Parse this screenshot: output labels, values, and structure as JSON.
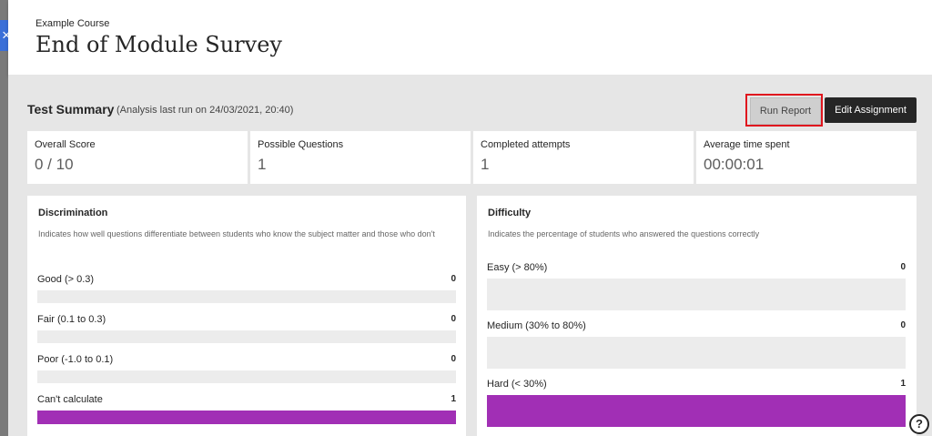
{
  "header": {
    "close_glyph": "×",
    "course_name": "Example Course",
    "page_title": "End of Module Survey"
  },
  "summary": {
    "title": "Test Summary",
    "analysis_note": "(Analysis last run on 24/03/2021, 20:40)",
    "run_report_label": "Run Report",
    "edit_assignment_label": "Edit Assignment"
  },
  "stats": [
    {
      "label": "Overall Score",
      "value": "0 / 10"
    },
    {
      "label": "Possible Questions",
      "value": "1"
    },
    {
      "label": "Completed attempts",
      "value": "1"
    },
    {
      "label": "Average time spent",
      "value": "00:00:01"
    }
  ],
  "discrimination": {
    "title": "Discrimination",
    "description": "Indicates how well questions differentiate between students who know the subject matter and those who don't",
    "rows": [
      {
        "label": "Good (> 0.3)",
        "count": "0",
        "fraction": 0
      },
      {
        "label": "Fair (0.1 to 0.3)",
        "count": "0",
        "fraction": 0
      },
      {
        "label": "Poor (-1.0 to 0.1)",
        "count": "0",
        "fraction": 0
      },
      {
        "label": "Can't calculate",
        "count": "1",
        "fraction": 1
      }
    ]
  },
  "difficulty": {
    "title": "Difficulty",
    "description": "Indicates the percentage of students who answered the questions correctly",
    "rows": [
      {
        "label": "Easy (> 80%)",
        "count": "0",
        "fraction": 0
      },
      {
        "label": "Medium (30% to 80%)",
        "count": "0",
        "fraction": 0
      },
      {
        "label": "Hard (< 30%)",
        "count": "1",
        "fraction": 1
      }
    ]
  },
  "help_glyph": "?",
  "colors": {
    "bar_fill": "#a12fb5",
    "highlight": "#e0161e",
    "close_tab": "#3a6fd8"
  }
}
